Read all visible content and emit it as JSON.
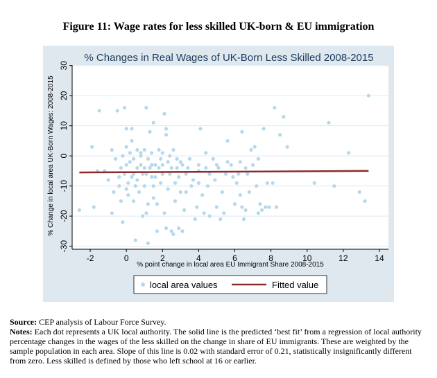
{
  "figure": {
    "title": "Figure 11: Wage rates for less skilled UK-born & EU immigration"
  },
  "chart_data": {
    "type": "scatter",
    "title": "% Changes in Real Wages of UK-Born Less Skilled 2008-2015",
    "xlabel": "% point change in local area EU Immigrant Share 2008-2015",
    "ylabel": "% Change in local area UK-Born Wages: 2008-2015",
    "xlim": [
      -3,
      14.5
    ],
    "ylim": [
      -31,
      32
    ],
    "xticks": [
      -2,
      0,
      2,
      4,
      6,
      8,
      10,
      12,
      14
    ],
    "yticks": [
      -30,
      -20,
      -10,
      0,
      10,
      20,
      30
    ],
    "grid": true,
    "legend_position": "bottom",
    "colors": {
      "points": "#b5d8ec",
      "fitted": "#8b2a2a",
      "background": "#dfe8ef",
      "grid": "#ffffff"
    },
    "series": [
      {
        "name": "local area values",
        "kind": "scatter",
        "points": [
          [
            -2.6,
            -18
          ],
          [
            -1.9,
            3
          ],
          [
            -1.8,
            -17
          ],
          [
            -1.6,
            -5
          ],
          [
            -1.5,
            15
          ],
          [
            -1.2,
            -5
          ],
          [
            -1,
            -8
          ],
          [
            -0.8,
            2
          ],
          [
            -0.8,
            -19
          ],
          [
            -0.7,
            -12
          ],
          [
            -0.6,
            -1
          ],
          [
            -0.5,
            15
          ],
          [
            -0.4,
            -7
          ],
          [
            -0.4,
            -10
          ],
          [
            -0.3,
            -15
          ],
          [
            -0.3,
            -4
          ],
          [
            -0.2,
            0
          ],
          [
            -0.2,
            -22
          ],
          [
            -0.1,
            16
          ],
          [
            -0.1,
            -6
          ],
          [
            0,
            -3
          ],
          [
            0,
            3
          ],
          [
            0,
            9
          ],
          [
            0,
            -11
          ],
          [
            0.1,
            -13
          ],
          [
            0.1,
            -9
          ],
          [
            0.2,
            -2
          ],
          [
            0.2,
            1
          ],
          [
            0.3,
            5
          ],
          [
            0.3,
            -7
          ],
          [
            0.3,
            9
          ],
          [
            0.4,
            -1
          ],
          [
            0.4,
            -6
          ],
          [
            0.4,
            -15
          ],
          [
            0.5,
            -28
          ],
          [
            0.5,
            -10
          ],
          [
            0.6,
            2
          ],
          [
            0.6,
            -4
          ],
          [
            0.6,
            -8
          ],
          [
            0.7,
            -12
          ],
          [
            0.8,
            0
          ],
          [
            0.8,
            1
          ],
          [
            0.8,
            -3
          ],
          [
            0.9,
            -6
          ],
          [
            0.9,
            -20
          ],
          [
            1,
            -10
          ],
          [
            1,
            -4
          ],
          [
            1,
            2
          ],
          [
            1.1,
            -6
          ],
          [
            1.1,
            16
          ],
          [
            1.1,
            -19
          ],
          [
            1.2,
            -16
          ],
          [
            1.2,
            -29
          ],
          [
            1.2,
            -1
          ],
          [
            1.3,
            -4
          ],
          [
            1.3,
            8
          ],
          [
            1.4,
            1
          ],
          [
            1.4,
            -3
          ],
          [
            1.4,
            -7
          ],
          [
            1.5,
            -10
          ],
          [
            1.5,
            11
          ],
          [
            1.5,
            -14
          ],
          [
            1.6,
            -3
          ],
          [
            1.6,
            -7
          ],
          [
            1.7,
            -25
          ],
          [
            1.7,
            -16
          ],
          [
            1.8,
            -4
          ],
          [
            1.8,
            2
          ],
          [
            1.9,
            -1
          ],
          [
            1.9,
            -9
          ],
          [
            2,
            -3
          ],
          [
            2,
            -6
          ],
          [
            2,
            1
          ],
          [
            2.1,
            14
          ],
          [
            2.1,
            -19
          ],
          [
            2.2,
            -24
          ],
          [
            2.2,
            7
          ],
          [
            2.2,
            9
          ],
          [
            2.3,
            -11
          ],
          [
            2.3,
            -2
          ],
          [
            2.4,
            -6
          ],
          [
            2.4,
            0
          ],
          [
            2.5,
            -4
          ],
          [
            2.5,
            -25
          ],
          [
            2.6,
            -26
          ],
          [
            2.6,
            2
          ],
          [
            2.7,
            -15
          ],
          [
            2.7,
            -9
          ],
          [
            2.8,
            -4
          ],
          [
            2.8,
            -1
          ],
          [
            2.9,
            -24
          ],
          [
            2.9,
            -7
          ],
          [
            3,
            -2
          ],
          [
            3,
            -12
          ],
          [
            3.1,
            -25
          ],
          [
            3.1,
            -3
          ],
          [
            3.2,
            -18
          ],
          [
            3.3,
            -6
          ],
          [
            3.3,
            -12
          ],
          [
            3.4,
            -4
          ],
          [
            3.5,
            -1
          ],
          [
            3.6,
            -10
          ],
          [
            3.7,
            -8
          ],
          [
            3.8,
            -21
          ],
          [
            3.9,
            -17
          ],
          [
            4,
            -5
          ],
          [
            4,
            -9
          ],
          [
            4,
            -3
          ],
          [
            4.1,
            9
          ],
          [
            4.2,
            -13
          ],
          [
            4.3,
            -19
          ],
          [
            4.4,
            -4
          ],
          [
            4.4,
            1
          ],
          [
            4.5,
            -10
          ],
          [
            4.6,
            -6
          ],
          [
            4.6,
            -20
          ],
          [
            4.8,
            -1
          ],
          [
            4.9,
            -8
          ],
          [
            5,
            -17
          ],
          [
            5,
            -3
          ],
          [
            5.1,
            -4
          ],
          [
            5.2,
            -21
          ],
          [
            5.3,
            -12
          ],
          [
            5.4,
            -19
          ],
          [
            5.5,
            -6
          ],
          [
            5.6,
            -2
          ],
          [
            5.6,
            5
          ],
          [
            5.8,
            -3
          ],
          [
            5.9,
            -7
          ],
          [
            6,
            -16
          ],
          [
            6.1,
            -9
          ],
          [
            6.2,
            -6
          ],
          [
            6.3,
            -13
          ],
          [
            6.3,
            -2
          ],
          [
            6.4,
            8
          ],
          [
            6.4,
            -17
          ],
          [
            6.5,
            -21
          ],
          [
            6.6,
            -4
          ],
          [
            6.6,
            -18
          ],
          [
            6.7,
            -6
          ],
          [
            6.8,
            -12
          ],
          [
            6.9,
            2
          ],
          [
            7,
            -3
          ],
          [
            7.1,
            3
          ],
          [
            7.2,
            -10
          ],
          [
            7.3,
            -1
          ],
          [
            7.3,
            -19
          ],
          [
            7.4,
            -16
          ],
          [
            7.5,
            -18
          ],
          [
            7.6,
            9
          ],
          [
            7.7,
            -17
          ],
          [
            7.8,
            -9
          ],
          [
            7.9,
            -17
          ],
          [
            8.1,
            -9
          ],
          [
            8.2,
            16
          ],
          [
            8.3,
            -17
          ],
          [
            8.5,
            7
          ],
          [
            8.7,
            13
          ],
          [
            8.9,
            3
          ],
          [
            10.4,
            -9
          ],
          [
            11.2,
            11
          ],
          [
            11.5,
            -10
          ],
          [
            12.3,
            1
          ],
          [
            12.9,
            -12
          ],
          [
            13.2,
            -15
          ],
          [
            13.4,
            20
          ]
        ]
      },
      {
        "name": "Fitted value",
        "kind": "line",
        "points": [
          [
            -2.6,
            -5.5
          ],
          [
            13.4,
            -5.0
          ]
        ]
      }
    ]
  },
  "notes": {
    "source_label": "Source:",
    "source_text": " CEP analysis of Labour Force Survey.",
    "notes_label": "Notes:",
    "notes_text": " Each dot represents a UK local authority. The solid line is the predicted ‘best fit’ from a regression of local authority percentage changes in the wages of the less skilled on the change in share of EU immigrants. These are weighted by the sample population in each area. Slope of this line is 0.02 with standard error of 0.21, statistically insignificantly different from zero. Less skilled is defined by those who left school at 16 or earlier."
  }
}
